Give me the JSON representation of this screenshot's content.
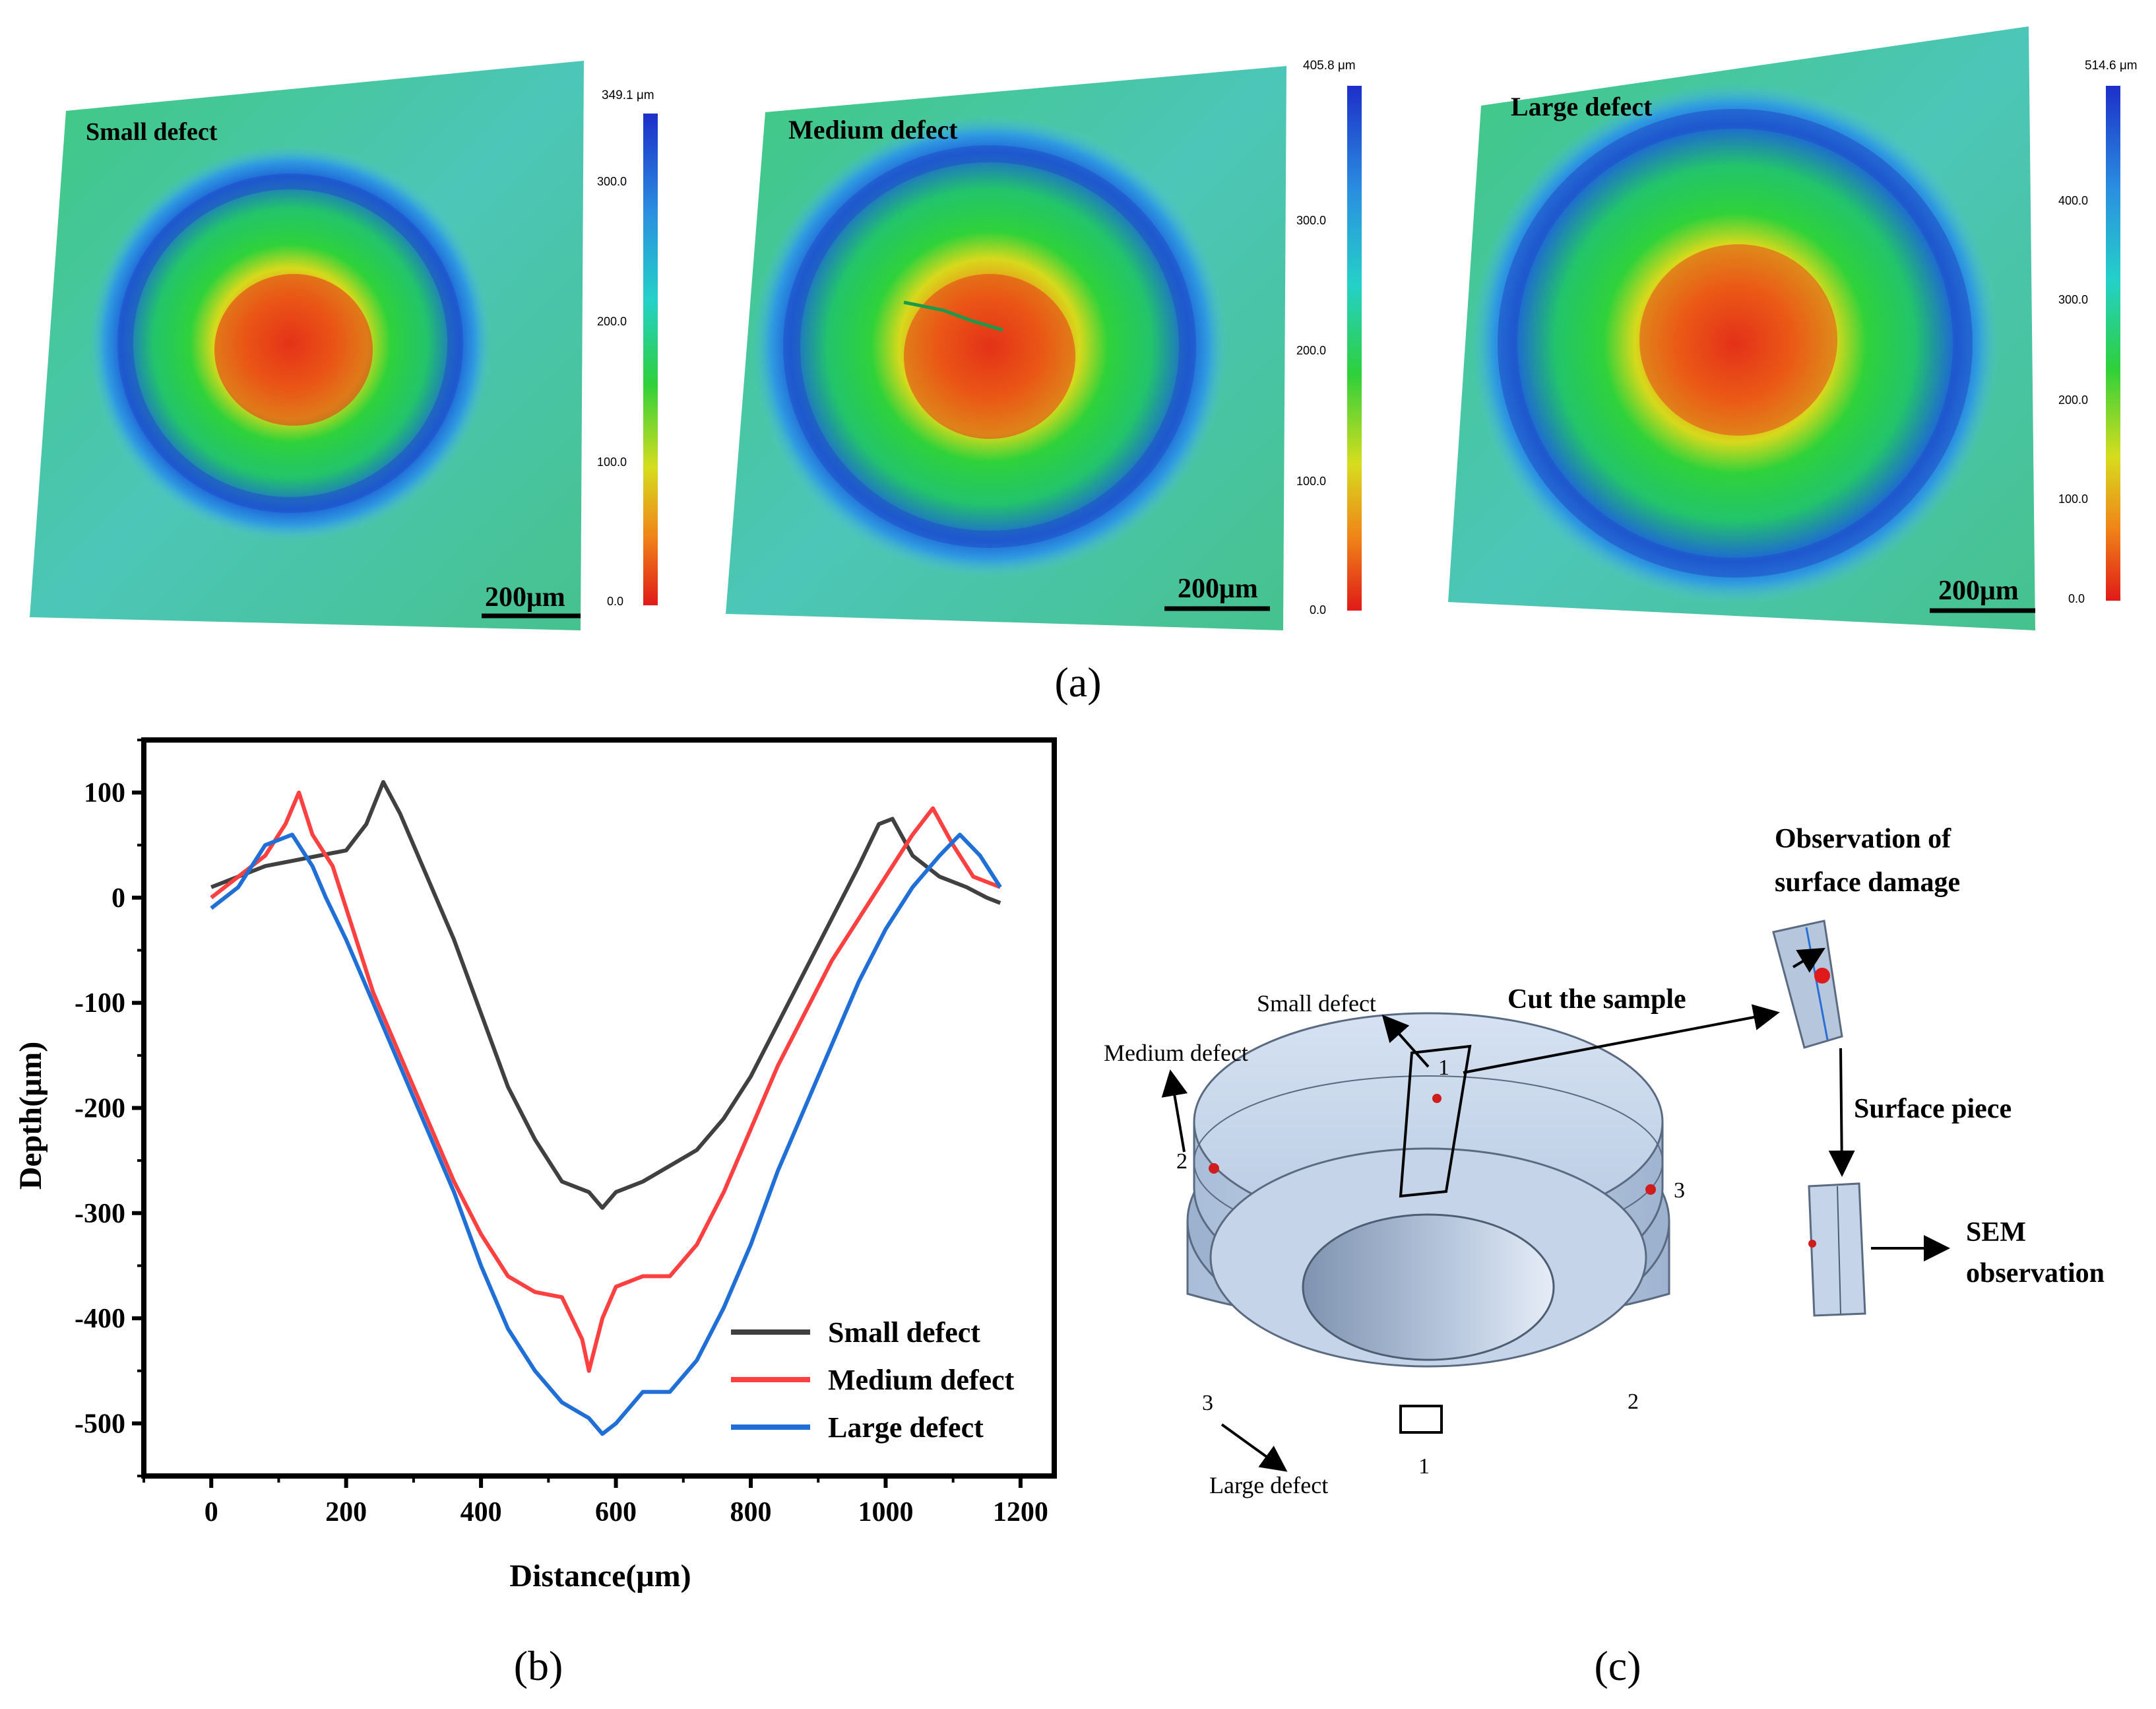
{
  "panel_a": {
    "caption": "(a)",
    "maps": [
      {
        "label": "Small defect",
        "max_label": "349.1 μm",
        "ticks": [
          "300.0",
          "200.0",
          "100.0",
          "0.0"
        ],
        "scale_bar": "200μm"
      },
      {
        "label": "Medium defect",
        "max_label": "405.8 μm",
        "ticks": [
          "300.0",
          "200.0",
          "100.0",
          "0.0"
        ],
        "scale_bar": "200μm"
      },
      {
        "label": "Large defect",
        "max_label": "514.6 μm",
        "ticks": [
          "400.0",
          "300.0",
          "200.0",
          "100.0",
          "0.0"
        ],
        "scale_bar": "200μm"
      }
    ]
  },
  "panel_b": {
    "caption": "(b)"
  },
  "panel_c": {
    "caption": "(c)",
    "labels": {
      "small_defect": "Small defect",
      "medium_defect": "Medium defect",
      "large_defect": "Large defect",
      "cut_sample": "Cut the sample",
      "observation_line1": "Observation of",
      "observation_line2": "surface damage",
      "surface_piece": "Surface piece",
      "sem_line1": "SEM",
      "sem_line2": "observation",
      "num_1_top": "1",
      "num_2_left": "2",
      "num_3_right": "3",
      "num_3_bottom": "3",
      "num_2_bottom": "2",
      "num_1_bottom": "1"
    }
  },
  "chart_data": {
    "type": "line",
    "title": "",
    "xlabel": "Distance(μm)",
    "ylabel": "Depth(μm)",
    "xlim": [
      -100,
      1250
    ],
    "ylim": [
      -550,
      150
    ],
    "xticks": [
      "0",
      "200",
      "400",
      "600",
      "800",
      "1000",
      "1200"
    ],
    "yticks": [
      "100",
      "0",
      "-100",
      "-200",
      "-300",
      "-400",
      "-500"
    ],
    "legend_position": "bottom-right",
    "series": [
      {
        "name": "Small defect",
        "color": "#404040",
        "x": [
          0,
          40,
          80,
          120,
          160,
          200,
          230,
          255,
          280,
          320,
          360,
          400,
          440,
          480,
          520,
          560,
          580,
          600,
          640,
          680,
          720,
          760,
          800,
          840,
          880,
          920,
          960,
          990,
          1010,
          1040,
          1080,
          1120,
          1150,
          1170
        ],
        "y": [
          10,
          20,
          30,
          35,
          40,
          45,
          70,
          110,
          80,
          20,
          -40,
          -110,
          -180,
          -230,
          -270,
          -280,
          -295,
          -280,
          -270,
          -255,
          -240,
          -210,
          -170,
          -120,
          -70,
          -20,
          30,
          70,
          75,
          40,
          20,
          10,
          0,
          -5
        ]
      },
      {
        "name": "Medium defect",
        "color": "#ff4040",
        "x": [
          0,
          40,
          80,
          110,
          130,
          150,
          180,
          210,
          240,
          280,
          320,
          360,
          400,
          440,
          480,
          520,
          550,
          560,
          580,
          600,
          640,
          680,
          720,
          760,
          800,
          840,
          880,
          920,
          960,
          1000,
          1040,
          1070,
          1100,
          1130,
          1170
        ],
        "y": [
          0,
          20,
          40,
          70,
          100,
          60,
          30,
          -30,
          -90,
          -150,
          -210,
          -270,
          -320,
          -360,
          -375,
          -380,
          -420,
          -450,
          -400,
          -370,
          -360,
          -360,
          -330,
          -280,
          -220,
          -160,
          -110,
          -60,
          -20,
          20,
          60,
          85,
          50,
          20,
          10
        ]
      },
      {
        "name": "Large defect",
        "color": "#1f6fd6",
        "x": [
          0,
          40,
          80,
          120,
          150,
          170,
          200,
          240,
          280,
          320,
          360,
          400,
          440,
          480,
          520,
          560,
          580,
          600,
          640,
          680,
          720,
          760,
          800,
          840,
          880,
          920,
          960,
          1000,
          1040,
          1080,
          1110,
          1140,
          1170
        ],
        "y": [
          -10,
          10,
          50,
          60,
          30,
          0,
          -40,
          -100,
          -160,
          -220,
          -280,
          -350,
          -410,
          -450,
          -480,
          -495,
          -510,
          -500,
          -470,
          -470,
          -440,
          -390,
          -330,
          -260,
          -200,
          -140,
          -80,
          -30,
          10,
          40,
          60,
          40,
          10
        ]
      }
    ]
  }
}
